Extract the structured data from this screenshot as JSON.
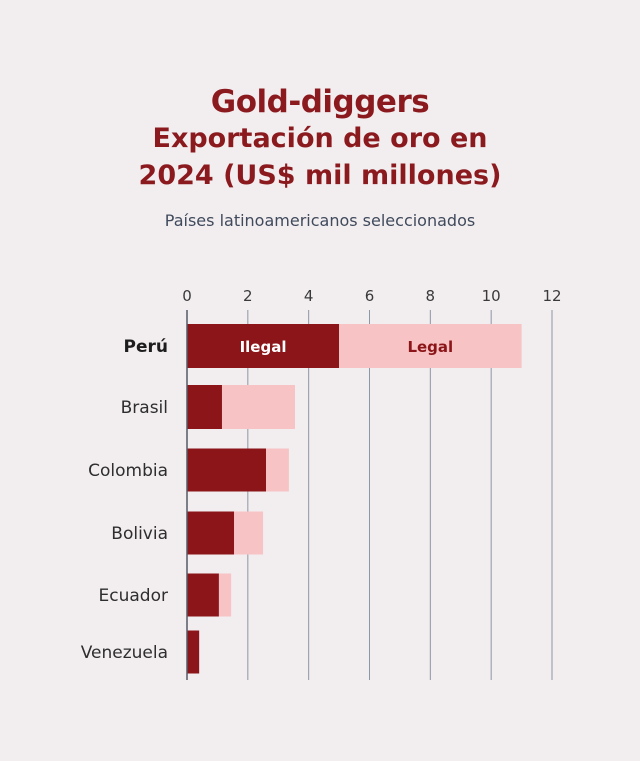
{
  "title": "Gold-diggers",
  "subtitle_lines": [
    "Exportación de oro en",
    "2024 (US$ mil millones)"
  ],
  "caption": "Países latinoamericanos seleccionados",
  "colors": {
    "background": "#f2edef",
    "ilegal": "#8b1518",
    "legal": "#f7c3c5",
    "title": "#8b1a1e"
  },
  "chart_data": {
    "type": "bar",
    "orientation": "horizontal",
    "stacked": true,
    "categories": [
      "Perú",
      "Brasil",
      "Colombia",
      "Bolivia",
      "Ecuador",
      "Venezuela"
    ],
    "highlighted_category": "Perú",
    "series": [
      {
        "name": "Ilegal",
        "values": [
          5.0,
          1.15,
          2.6,
          1.55,
          1.05,
          0.4
        ]
      },
      {
        "name": "Legal",
        "values": [
          6.0,
          2.4,
          0.75,
          0.95,
          0.4,
          0.0
        ]
      }
    ],
    "series_labels_on_category": "Perú",
    "x_ticks": [
      "0",
      "2",
      "4",
      "6",
      "8",
      "10",
      "12"
    ],
    "xlim": [
      0,
      12
    ],
    "grid": true,
    "xlabel": "",
    "ylabel": ""
  }
}
